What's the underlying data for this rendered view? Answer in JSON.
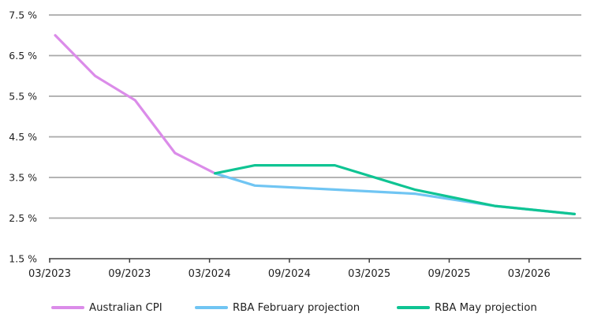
{
  "chart_data": {
    "type": "line",
    "title": "",
    "xlabel": "",
    "ylabel": "",
    "ylim": [
      1.5,
      7.5
    ],
    "grid": true,
    "legend_position": "bottom",
    "y_ticks": [
      {
        "value": 7.5,
        "label": "7.5 %"
      },
      {
        "value": 6.5,
        "label": "6.5 %"
      },
      {
        "value": 5.5,
        "label": "5.5 %"
      },
      {
        "value": 4.5,
        "label": "4.5 %"
      },
      {
        "value": 3.5,
        "label": "3.5 %"
      },
      {
        "value": 2.5,
        "label": "2.5 %"
      },
      {
        "value": 1.5,
        "label": "1.5 %"
      }
    ],
    "x_ticks": [
      {
        "months": 0,
        "label": "03/2023"
      },
      {
        "months": 6,
        "label": "09/2023"
      },
      {
        "months": 12,
        "label": "03/2024"
      },
      {
        "months": 18,
        "label": "09/2024"
      },
      {
        "months": 24,
        "label": "03/2025"
      },
      {
        "months": 30,
        "label": "09/2025"
      },
      {
        "months": 36,
        "label": "03/2026"
      }
    ],
    "series": [
      {
        "name": "Australian CPI",
        "color": "#db8ce9",
        "points": [
          {
            "months": 0,
            "date": "03/2023",
            "value": 7.0
          },
          {
            "months": 3,
            "date": "06/2023",
            "value": 6.0
          },
          {
            "months": 6,
            "date": "09/2023",
            "value": 5.4
          },
          {
            "months": 9,
            "date": "12/2023",
            "value": 4.1
          },
          {
            "months": 12,
            "date": "03/2024",
            "value": 3.6
          }
        ]
      },
      {
        "name": "RBA February projection",
        "color": "#70c5f3",
        "points": [
          {
            "months": 12,
            "date": "03/2024",
            "value": 3.6
          },
          {
            "months": 15,
            "date": "06/2024",
            "value": 3.3
          },
          {
            "months": 21,
            "date": "12/2024",
            "value": 3.2
          },
          {
            "months": 27,
            "date": "06/2025",
            "value": 3.1
          },
          {
            "months": 33,
            "date": "12/2025",
            "value": 2.8
          },
          {
            "months": 39,
            "date": "06/2026",
            "value": 2.6
          }
        ]
      },
      {
        "name": "RBA May projection",
        "color": "#0fc493",
        "points": [
          {
            "months": 12,
            "date": "03/2024",
            "value": 3.6
          },
          {
            "months": 15,
            "date": "06/2024",
            "value": 3.8
          },
          {
            "months": 21,
            "date": "12/2024",
            "value": 3.8
          },
          {
            "months": 27,
            "date": "06/2025",
            "value": 3.2
          },
          {
            "months": 33,
            "date": "12/2025",
            "value": 2.8
          },
          {
            "months": 39,
            "date": "06/2026",
            "value": 2.6
          }
        ]
      }
    ]
  },
  "legend": {
    "items": [
      {
        "label": "Australian CPI",
        "color": "#db8ce9"
      },
      {
        "label": "RBA February projection",
        "color": "#70c5f3"
      },
      {
        "label": "RBA May projection",
        "color": "#0fc493"
      }
    ]
  },
  "colors": {
    "gridline": "#a9a9a9",
    "axis": "#3f3f3f",
    "text": "#1f1f1f"
  }
}
